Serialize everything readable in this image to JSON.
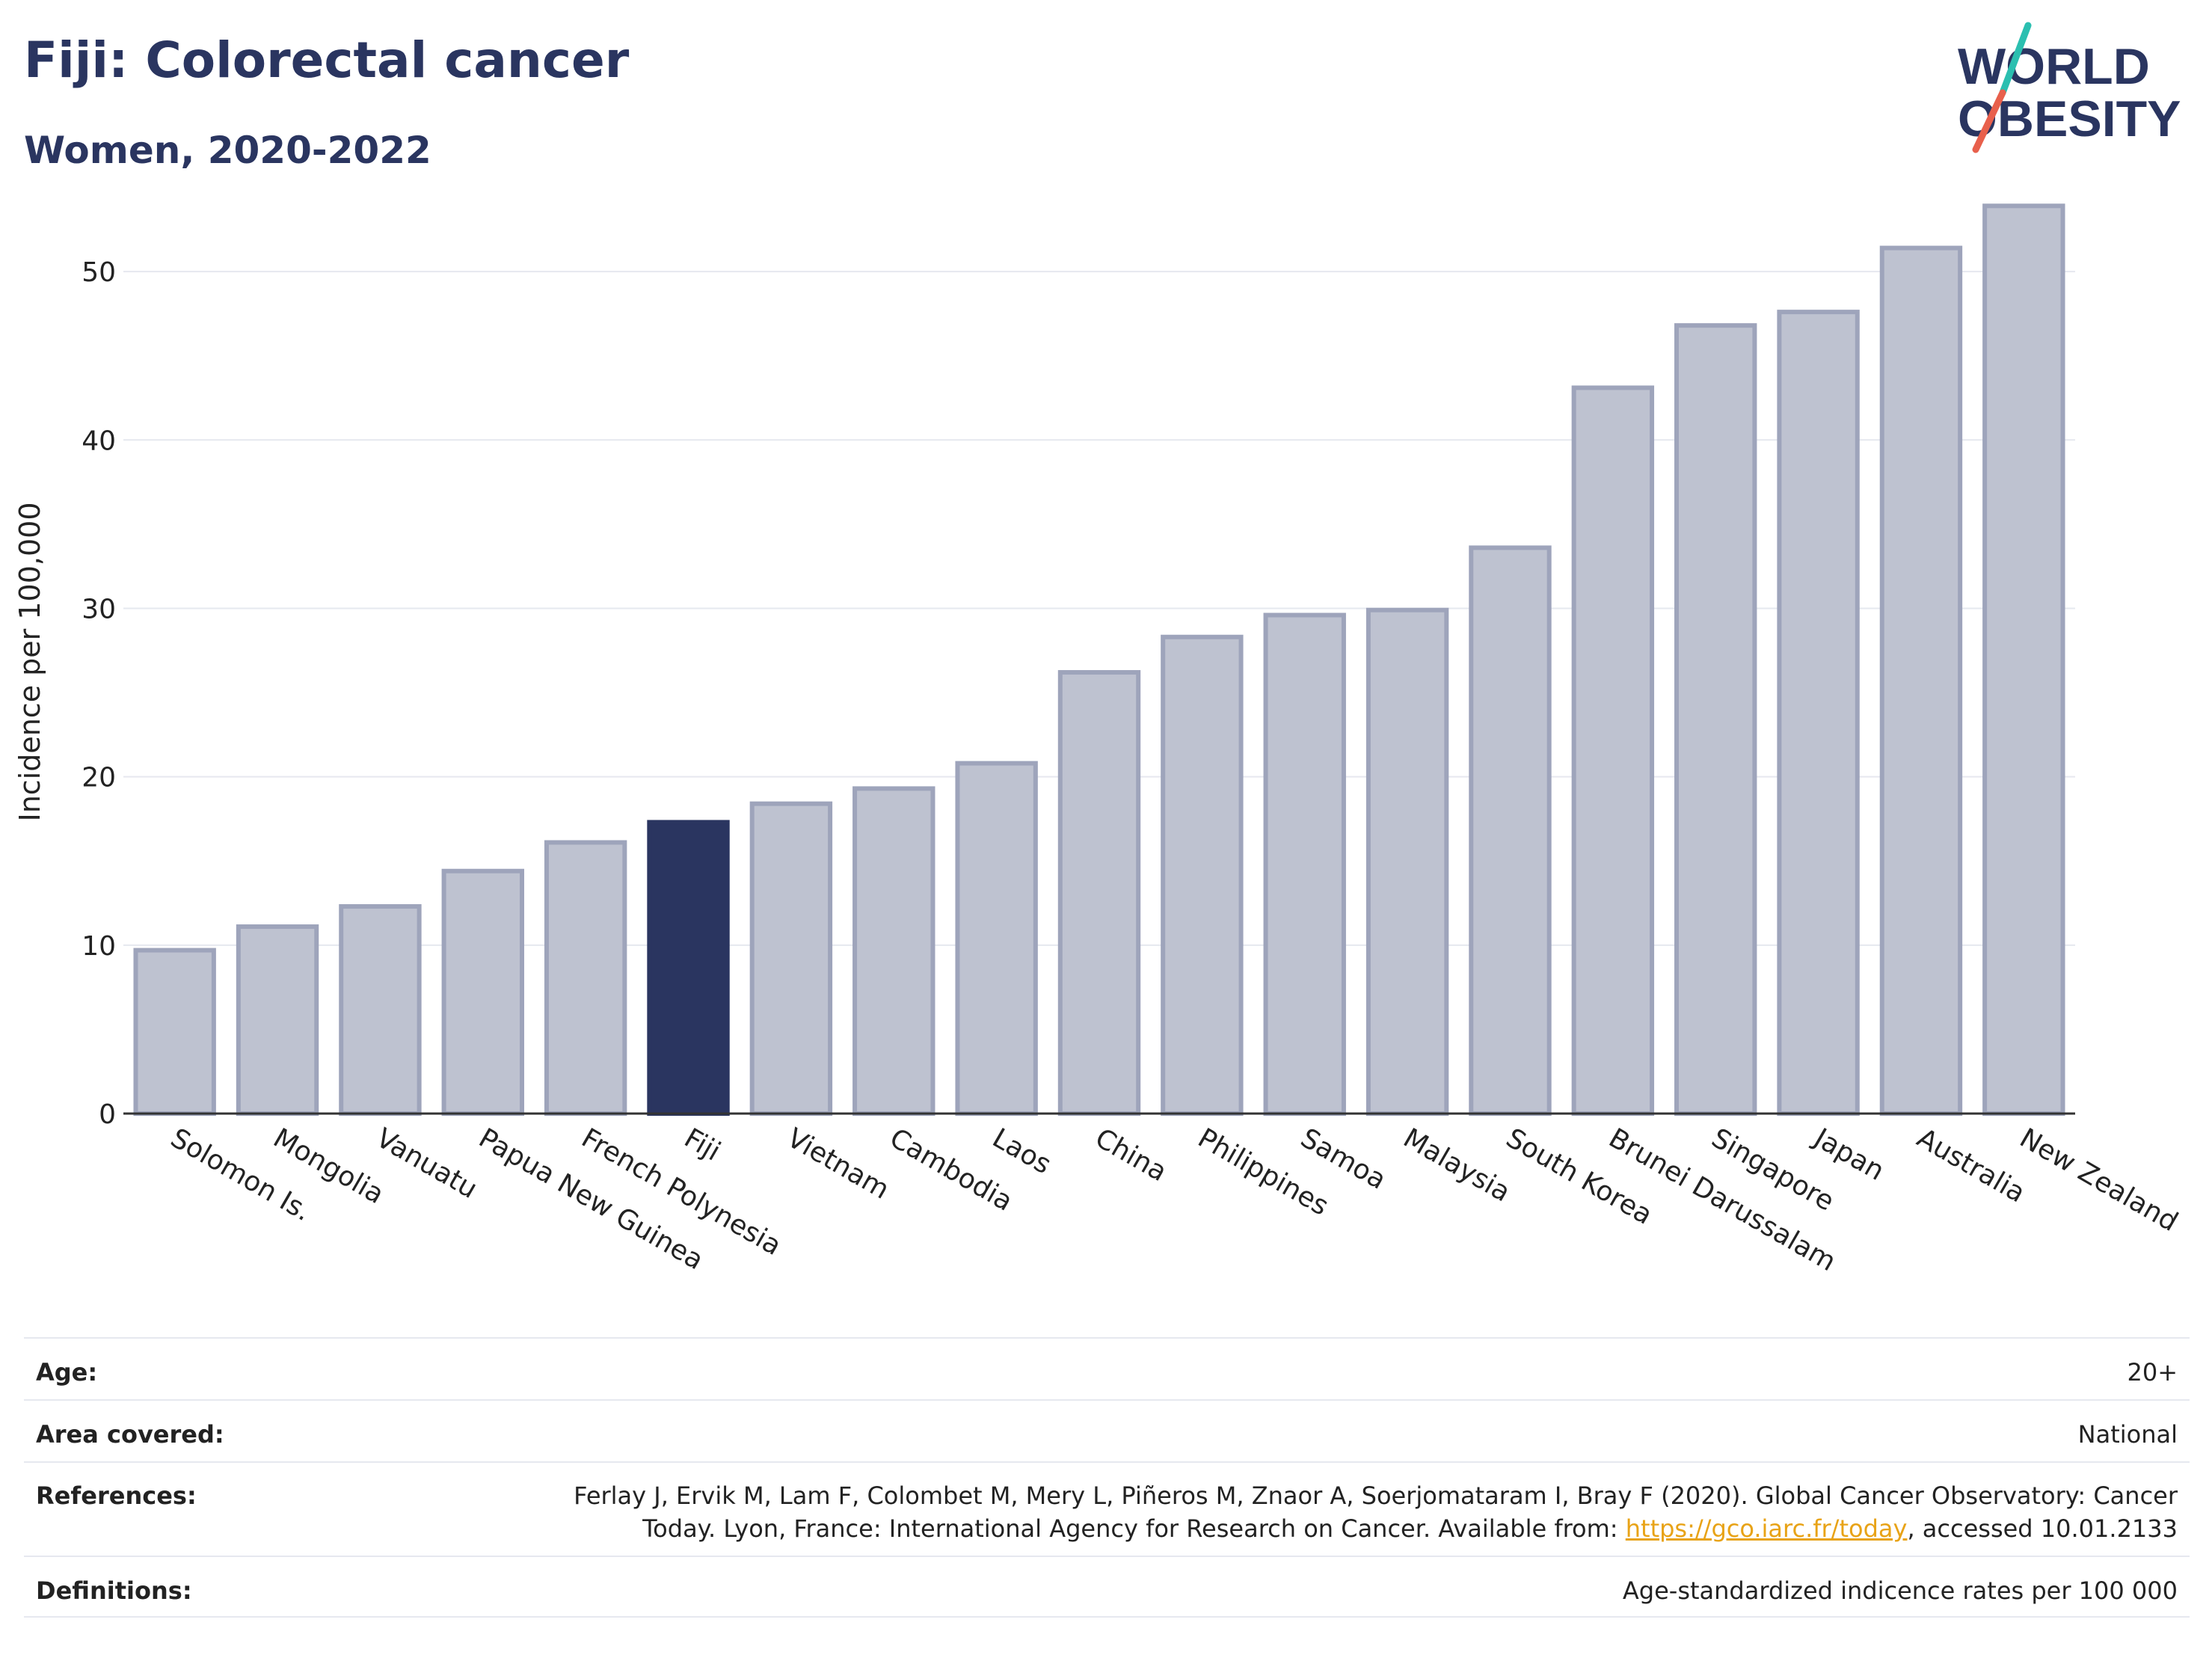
{
  "header": {
    "title": "Fiji: Colorectal cancer",
    "subtitle": "Women, 2020-2022"
  },
  "logo": {
    "line1": "WORLD",
    "line2": "OBESITY"
  },
  "chart_data": {
    "type": "bar",
    "categories": [
      "Solomon Is.",
      "Mongolia",
      "Vanuatu",
      "Papua New Guinea",
      "French Polynesia",
      "Fiji",
      "Vietnam",
      "Cambodia",
      "Laos",
      "China",
      "Philippines",
      "Samoa",
      "Malaysia",
      "South Korea",
      "Brunei Darussalam",
      "Singapore",
      "Japan",
      "Australia",
      "New Zealand"
    ],
    "values": [
      9.7,
      11.1,
      12.3,
      14.4,
      16.1,
      17.3,
      18.4,
      19.3,
      20.8,
      26.2,
      28.3,
      29.6,
      29.9,
      33.6,
      43.1,
      46.8,
      47.6,
      51.4,
      53.9
    ],
    "highlight": "Fiji",
    "ylabel": "Incidence per 100,000",
    "xlabel": "",
    "ylim": [
      0,
      56
    ],
    "yticks": [
      0,
      10,
      20,
      30,
      40,
      50
    ],
    "grid": true,
    "colors": {
      "bar": "#bec2d0",
      "bar_edge": "#9ea4bb",
      "highlight": "#2a3560",
      "grid": "#e6e8ef",
      "axis": "#333333"
    }
  },
  "info": {
    "age_label": "Age:",
    "age_value": "20+",
    "area_label": "Area covered:",
    "area_value": "National",
    "ref_label": "References:",
    "ref_line1": "Ferlay J, Ervik M, Lam F, Colombet M, Mery L, Piñeros M, Znaor A, Soerjomataram I, Bray F (2020). Global Cancer Observatory: Cancer",
    "ref_line2_pre": "Today. Lyon, France: International Agency for Research on Cancer. Available from: ",
    "ref_link": "https://gco.iarc.fr/today",
    "ref_line2_post": ", accessed 10.01.2133",
    "def_label": "Definitions:",
    "def_value": "Age-standardized indicence rates per 100 000"
  }
}
